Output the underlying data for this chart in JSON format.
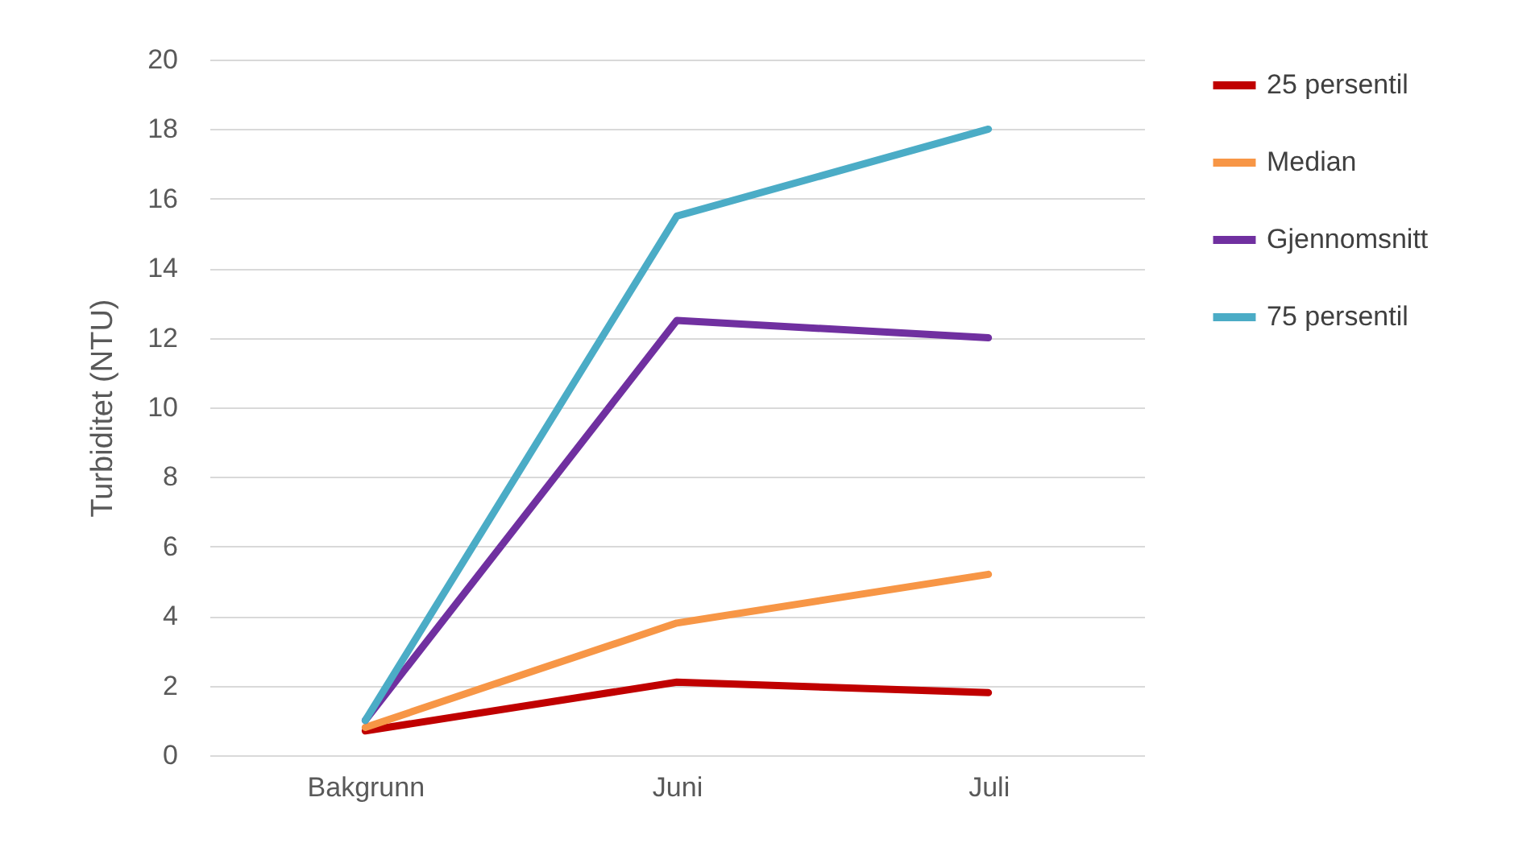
{
  "chart_data": {
    "type": "line",
    "ylabel": "Turbiditet (NTU)",
    "categories": [
      "Bakgrunn",
      "Juni",
      "Juli"
    ],
    "series": [
      {
        "name": "25 persentil",
        "color": "#c00000",
        "values": [
          0.7,
          2.1,
          1.8
        ]
      },
      {
        "name": "Median",
        "color": "#f79646",
        "values": [
          0.8,
          3.8,
          5.2
        ]
      },
      {
        "name": "Gjennomsnitt",
        "color": "#7030a0",
        "values": [
          1.0,
          12.5,
          12.0
        ]
      },
      {
        "name": "75 persentil",
        "color": "#4bacc6",
        "values": [
          1.0,
          15.5,
          18.0
        ]
      }
    ],
    "ylim": [
      0,
      20
    ],
    "yticks": [
      0,
      2,
      4,
      6,
      8,
      10,
      12,
      14,
      16,
      18,
      20
    ],
    "grid": "y",
    "legend": "right",
    "marker": "none",
    "line_style": "solid"
  }
}
